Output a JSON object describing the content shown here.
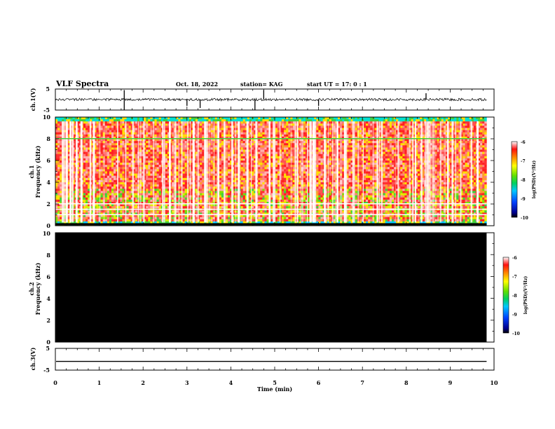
{
  "header": {
    "title": "VLF Spectra",
    "date": "Oct. 18, 2022",
    "station": "station= KAG",
    "start": "start  UT =   17: 0  : 1"
  },
  "chart_data": [
    {
      "type": "line",
      "panel": "ch1-waveform",
      "ylabel": "ch.1(V)",
      "ylim": [
        -5,
        5
      ],
      "yticks": [
        "5",
        "-5"
      ],
      "xlim": [
        0,
        10
      ],
      "series": [
        {
          "name": "ch.1 waveform",
          "baseline": 0,
          "noise_amplitude": 0.6,
          "spikes": [
            {
              "x": 1.57,
              "v": -5
            },
            {
              "x": 1.57,
              "v": 4.5
            },
            {
              "x": 3.0,
              "v": -3
            },
            {
              "x": 3.3,
              "v": -4
            },
            {
              "x": 4.55,
              "v": -5
            },
            {
              "x": 4.75,
              "v": 4.5
            },
            {
              "x": 6.0,
              "v": -3
            },
            {
              "x": 8.45,
              "v": 3
            }
          ]
        }
      ]
    },
    {
      "type": "heatmap",
      "panel": "ch1-spectrogram",
      "ylabel_line1": "ch.1",
      "ylabel_line2": "Frequency  (kHz)",
      "ylim": [
        0,
        10
      ],
      "yticks": [
        "0",
        "2",
        "4",
        "6",
        "8",
        "10"
      ],
      "xlim": [
        0,
        10
      ],
      "data_end_min": 9.83,
      "colorbar": {
        "label": "log(PSD)(V²/Hz)",
        "range": [
          -10,
          -6
        ],
        "ticks": [
          "-6",
          "-7",
          "-8",
          "-9",
          "-10"
        ]
      }
    },
    {
      "type": "heatmap",
      "panel": "ch2-spectrogram",
      "ylabel_line1": "ch.2",
      "ylabel_line2": "Frequency  (kHz)",
      "ylim": [
        0,
        10
      ],
      "yticks": [
        "0",
        "2",
        "4",
        "6",
        "8",
        "10"
      ],
      "xlim": [
        0,
        10
      ],
      "data_end_min": 9.83,
      "fill": "#000000",
      "colorbar": {
        "label": "log(PSD)(V²/Hz)",
        "range": [
          -10,
          -6
        ],
        "ticks": [
          "-6",
          "-7",
          "-8",
          "-9",
          "-10"
        ]
      }
    },
    {
      "type": "line",
      "panel": "ch3-waveform",
      "ylabel": "ch.3(V)",
      "ylim": [
        -5,
        5
      ],
      "yticks": [
        "5",
        "-5"
      ],
      "xlim": [
        0,
        10
      ],
      "xticks": [
        "0",
        "1",
        "2",
        "3",
        "4",
        "5",
        "6",
        "7",
        "8",
        "9",
        "10"
      ],
      "xlabel": "Time  (min)",
      "series": [
        {
          "name": "ch.3 waveform",
          "constant": -1,
          "x_end": 9.83
        }
      ]
    }
  ]
}
